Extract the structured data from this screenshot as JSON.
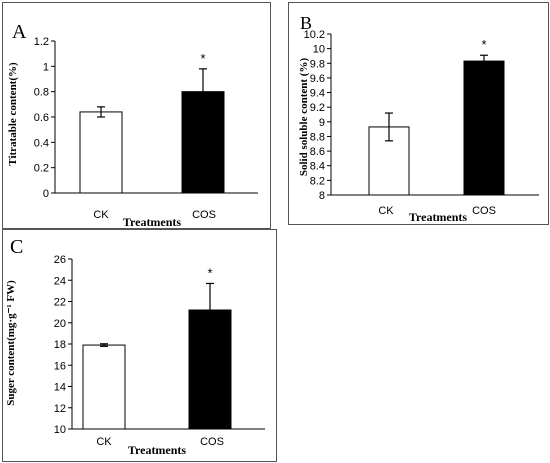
{
  "chart_data": [
    {
      "panel": "A",
      "type": "bar",
      "categories": [
        "CK",
        "COS"
      ],
      "values": [
        0.64,
        0.8
      ],
      "errors": [
        0.04,
        0.18
      ],
      "significance": [
        "",
        "*"
      ],
      "xlabel": "Treatments",
      "ylabel": "Titratable content(%)",
      "ylim": [
        0,
        1.2
      ],
      "yticks": [
        "0",
        "0.2",
        "0.4",
        "0.6",
        "0.8",
        "1",
        "1.2"
      ],
      "bar_colors": [
        "#ffffff",
        "#000000"
      ],
      "grid": false
    },
    {
      "panel": "B",
      "type": "bar",
      "categories": [
        "CK",
        "COS"
      ],
      "values": [
        8.93,
        9.83
      ],
      "errors": [
        0.19,
        0.08
      ],
      "significance": [
        "",
        "*"
      ],
      "xlabel": "Treatments",
      "ylabel": "Solid soluble content (%)",
      "ylim": [
        8,
        10.2
      ],
      "yticks": [
        "8",
        "8.2",
        "8.4",
        "8.6",
        "8.8",
        "9",
        "9.2",
        "9.4",
        "9.6",
        "9.8",
        "10",
        "10.2"
      ],
      "bar_colors": [
        "#ffffff",
        "#000000"
      ],
      "grid": false
    },
    {
      "panel": "C",
      "type": "bar",
      "categories": [
        "CK",
        "COS"
      ],
      "values": [
        17.9,
        21.2
      ],
      "errors": [
        0.12,
        2.5
      ],
      "significance": [
        "",
        "*"
      ],
      "xlabel": "Treatments",
      "ylabel": "Suger content(mg·g⁻¹ FW)",
      "ylim": [
        10,
        26
      ],
      "yticks": [
        "10",
        "12",
        "14",
        "16",
        "18",
        "20",
        "22",
        "24",
        "26"
      ],
      "bar_colors": [
        "#ffffff",
        "#000000"
      ],
      "grid": false
    }
  ]
}
